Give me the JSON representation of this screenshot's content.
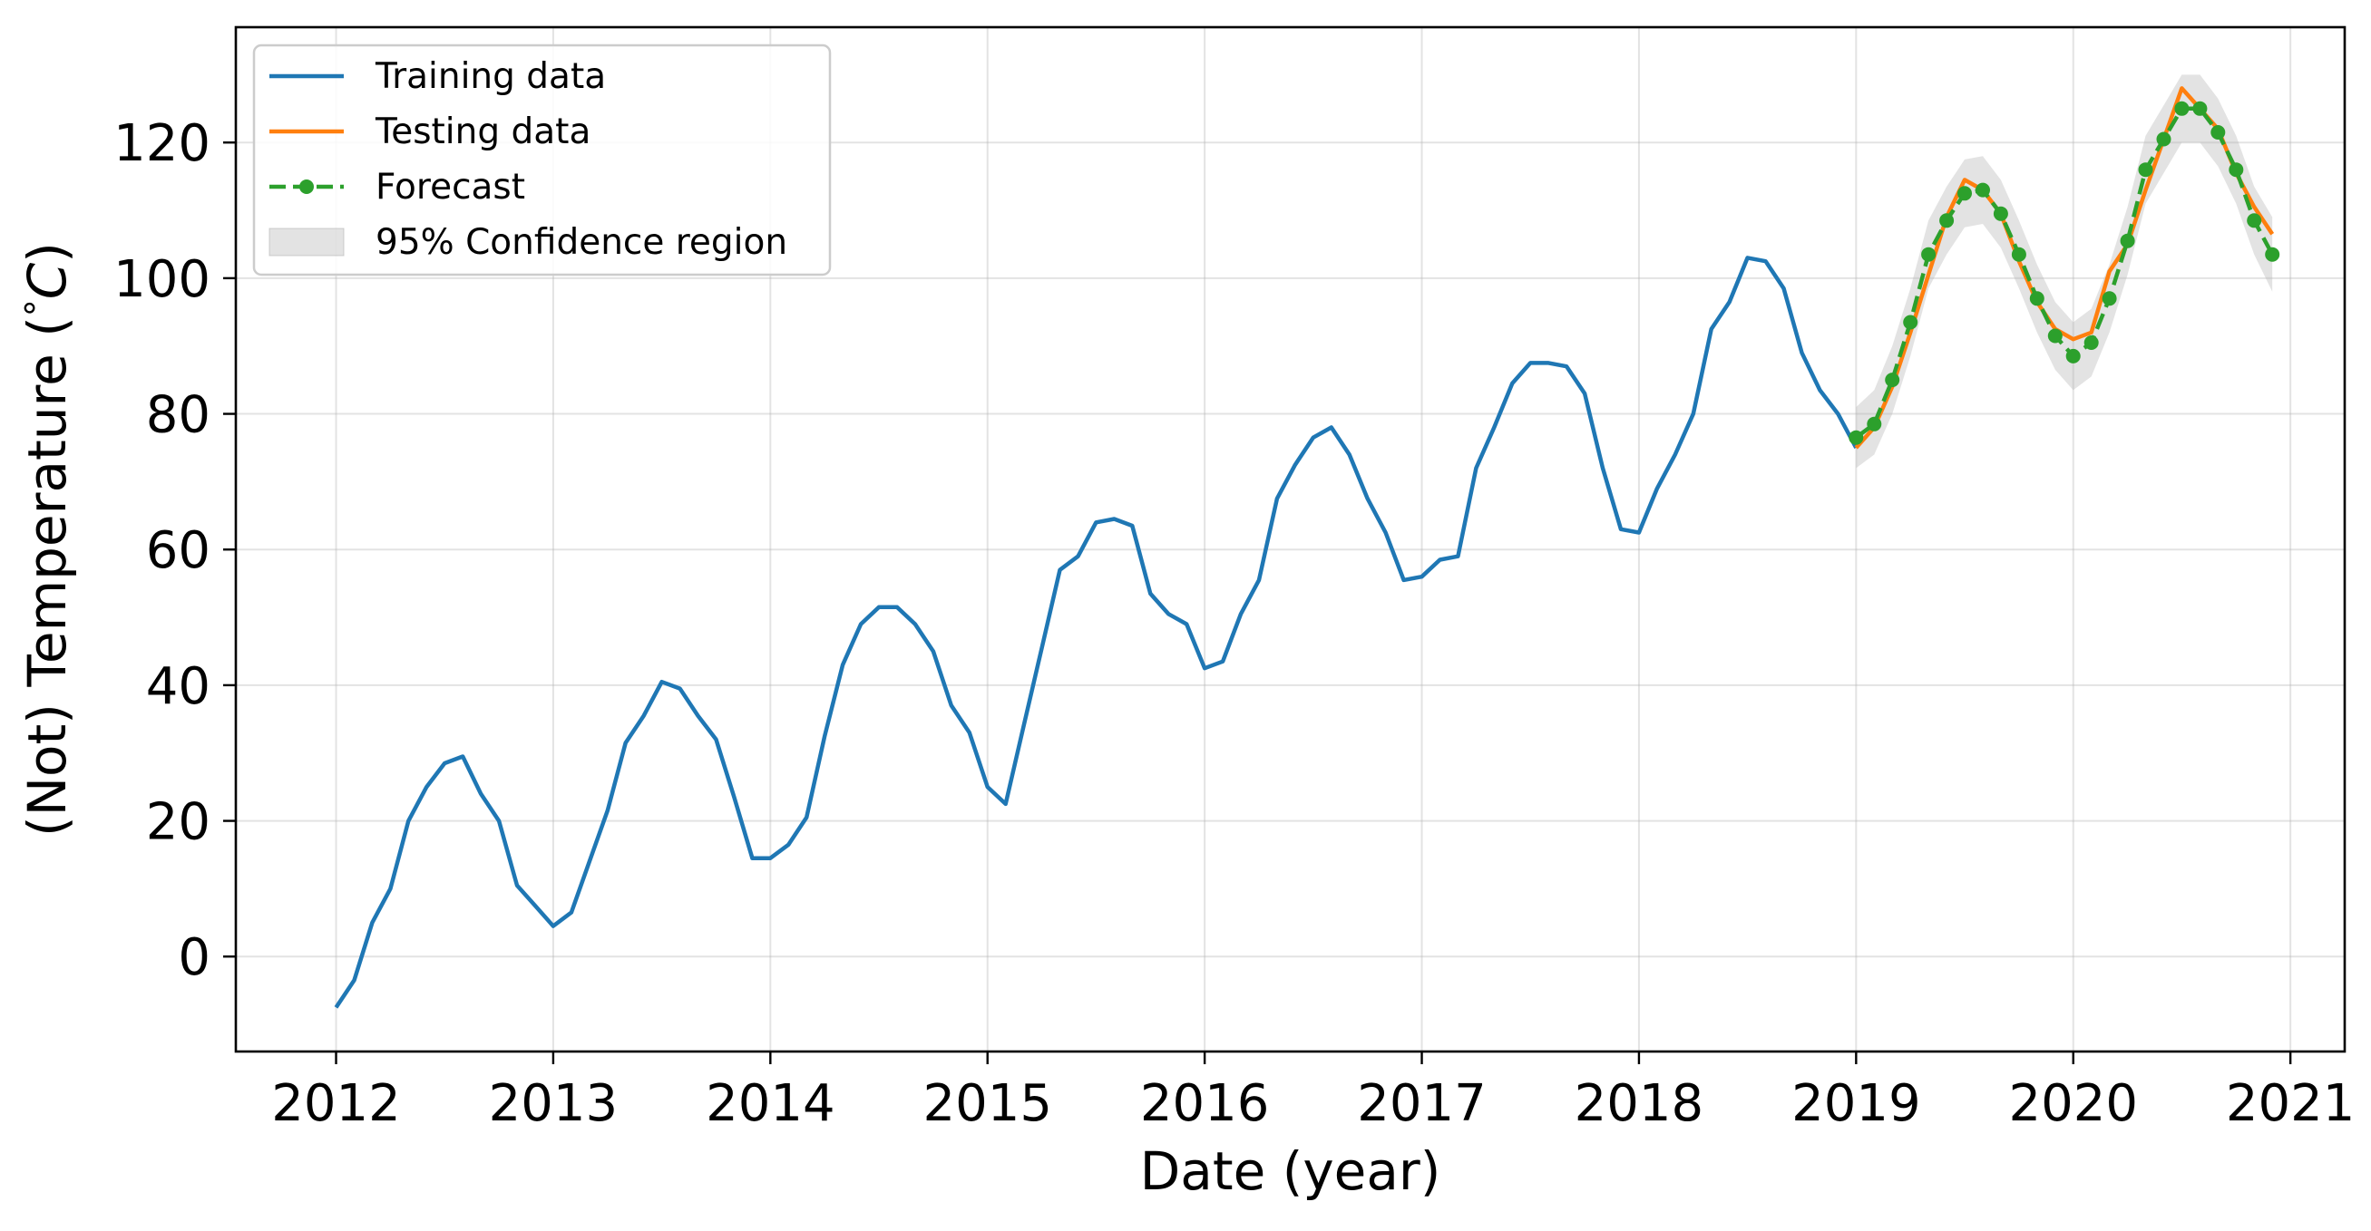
{
  "chart_data": {
    "type": "line",
    "title": "",
    "xlabel": "Date (year)",
    "ylabel": "(Not) Temperature (°C)",
    "ylabel_parts": {
      "prefix": "(Not) Temperature (",
      "degree": "°",
      "unit": "C",
      "suffix": ")"
    },
    "xlim": [
      "2011-07-15",
      "2021-04-01"
    ],
    "ylim": [
      -14,
      137
    ],
    "x_ticks": [
      "2012",
      "2013",
      "2014",
      "2015",
      "2016",
      "2017",
      "2018",
      "2019",
      "2020",
      "2021"
    ],
    "y_ticks": [
      "0",
      "20",
      "40",
      "60",
      "80",
      "100",
      "120"
    ],
    "grid": true,
    "legend_position": "top-left",
    "colors": {
      "training": "#1f77b4",
      "testing": "#ff7f0e",
      "forecast": "#2ca02c",
      "confidence": "#b0b0b0"
    },
    "legend": [
      {
        "label": "Training data",
        "style": "line",
        "color": "#1f77b4"
      },
      {
        "label": "Testing data",
        "style": "line",
        "color": "#ff7f0e"
      },
      {
        "label": "Forecast",
        "style": "dashed-dot",
        "color": "#2ca02c"
      },
      {
        "label": "95% Confidence region",
        "style": "patch",
        "color": "#b0b0b0"
      }
    ],
    "series": [
      {
        "name": "Training data",
        "x": [
          "2012-01",
          "2012-02",
          "2012-03",
          "2012-04",
          "2012-05",
          "2012-06",
          "2012-07",
          "2012-08",
          "2012-09",
          "2012-10",
          "2012-11",
          "2012-12",
          "2013-01",
          "2013-02",
          "2013-03",
          "2013-04",
          "2013-05",
          "2013-06",
          "2013-07",
          "2013-08",
          "2013-09",
          "2013-10",
          "2013-11",
          "2013-12",
          "2014-01",
          "2014-02",
          "2014-03",
          "2014-04",
          "2014-05",
          "2014-06",
          "2014-07",
          "2014-08",
          "2014-09",
          "2014-10",
          "2014-11",
          "2014-12",
          "2015-01",
          "2015-02",
          "2015-03",
          "2015-04",
          "2015-05",
          "2015-06",
          "2015-07",
          "2015-08",
          "2015-09",
          "2015-10",
          "2015-11",
          "2015-12",
          "2016-01",
          "2016-02",
          "2016-03",
          "2016-04",
          "2016-05",
          "2016-06",
          "2016-07",
          "2016-08",
          "2016-09",
          "2016-10",
          "2016-11",
          "2016-12",
          "2017-01",
          "2017-02",
          "2017-03",
          "2017-04",
          "2017-05",
          "2017-06",
          "2017-07",
          "2017-08",
          "2017-09",
          "2017-10",
          "2017-11",
          "2017-12",
          "2018-01",
          "2018-02",
          "2018-03",
          "2018-04",
          "2018-05",
          "2018-06",
          "2018-07",
          "2018-08",
          "2018-09",
          "2018-10",
          "2018-11",
          "2018-12",
          "2019-01"
        ],
        "values": [
          -7.5,
          -3.5,
          5,
          10,
          20,
          25,
          28.5,
          29.5,
          24,
          20,
          10.5,
          7.5,
          4.5,
          6.5,
          14,
          21.5,
          31.5,
          35.5,
          40.5,
          39.5,
          35.5,
          32,
          23.5,
          14.5,
          14.5,
          16.5,
          20.5,
          32.5,
          43,
          49,
          51.5,
          51.5,
          49,
          45,
          37,
          33,
          25,
          22.5,
          34,
          45.5,
          57,
          59,
          64,
          64.5,
          63.5,
          53.5,
          50.5,
          49,
          42.5,
          43.5,
          50.5,
          55.5,
          67.5,
          72.5,
          76.5,
          78,
          74,
          67.5,
          62.5,
          55.5,
          56,
          58.5,
          59,
          72,
          78,
          84.5,
          87.5,
          87.5,
          87,
          83,
          72,
          63,
          62.5,
          69,
          74,
          80,
          92.5,
          96.5,
          103,
          102.5,
          98.5,
          89,
          83.5,
          80,
          75
        ]
      },
      {
        "name": "Testing data",
        "x": [
          "2019-01",
          "2019-02",
          "2019-03",
          "2019-04",
          "2019-05",
          "2019-06",
          "2019-07",
          "2019-08",
          "2019-09",
          "2019-10",
          "2019-11",
          "2019-12",
          "2020-01",
          "2020-02",
          "2020-03",
          "2020-04",
          "2020-05",
          "2020-06",
          "2020-07",
          "2020-08",
          "2020-09",
          "2020-10",
          "2020-11",
          "2020-12"
        ],
        "values": [
          75,
          78,
          84,
          92,
          100.5,
          109,
          114.5,
          113,
          109.5,
          102.5,
          96.5,
          92.5,
          91,
          92,
          101,
          105,
          113,
          120.5,
          128,
          125,
          122,
          115.5,
          110.5,
          106.5
        ]
      },
      {
        "name": "Forecast",
        "x": [
          "2019-01",
          "2019-02",
          "2019-03",
          "2019-04",
          "2019-05",
          "2019-06",
          "2019-07",
          "2019-08",
          "2019-09",
          "2019-10",
          "2019-11",
          "2019-12",
          "2020-01",
          "2020-02",
          "2020-03",
          "2020-04",
          "2020-05",
          "2020-06",
          "2020-07",
          "2020-08",
          "2020-09",
          "2020-10",
          "2020-11",
          "2020-12"
        ],
        "values": [
          76.5,
          78.5,
          85,
          93.5,
          103.5,
          108.5,
          112.5,
          113,
          109.5,
          103.5,
          97,
          91.5,
          88.5,
          90.5,
          97,
          105.5,
          116,
          120.5,
          125,
          125,
          121.5,
          116,
          108.5,
          103.5
        ]
      },
      {
        "name": "95% Confidence region",
        "x": [
          "2019-01",
          "2019-02",
          "2019-03",
          "2019-04",
          "2019-05",
          "2019-06",
          "2019-07",
          "2019-08",
          "2019-09",
          "2019-10",
          "2019-11",
          "2019-12",
          "2020-01",
          "2020-02",
          "2020-03",
          "2020-04",
          "2020-05",
          "2020-06",
          "2020-07",
          "2020-08",
          "2020-09",
          "2020-10",
          "2020-11",
          "2020-12"
        ],
        "lower": [
          72,
          74,
          80,
          88.5,
          98.5,
          103.5,
          107.5,
          108,
          104.5,
          98.5,
          92,
          86.5,
          83.5,
          85.5,
          92,
          100.5,
          111,
          115.5,
          120,
          120,
          116.5,
          111,
          103.5,
          98
        ],
        "upper": [
          81,
          83.5,
          90,
          98.5,
          108.5,
          113.5,
          117.5,
          118,
          114.5,
          108.5,
          102,
          96.5,
          93.5,
          95.5,
          102,
          110.5,
          121,
          125.5,
          130,
          130,
          126.5,
          121,
          113.5,
          109
        ]
      }
    ]
  }
}
